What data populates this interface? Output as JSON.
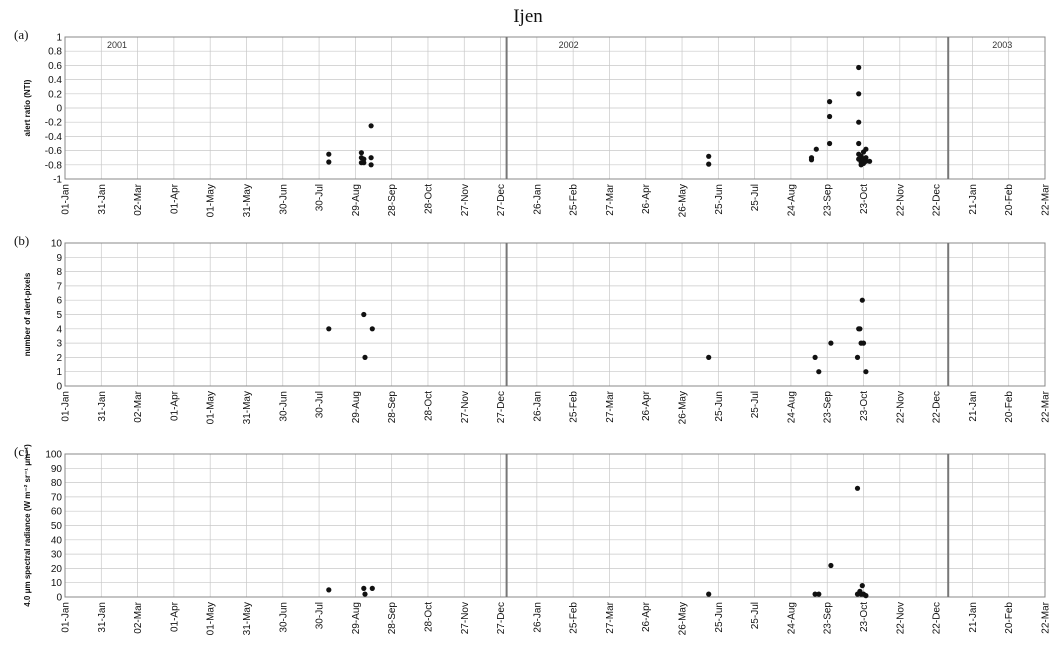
{
  "title": "Ijen",
  "chart_data": [
    {
      "panel": "(a)",
      "type": "scatter",
      "ylabel": "alert ratio (NTI)",
      "ylim": [
        -1,
        1
      ],
      "ytick_step": 0.2,
      "xlim": [
        "2001-01-01",
        "2003-03-22"
      ],
      "xticks": [
        "01-Jan",
        "31-Jan",
        "02-Mar",
        "01-Apr",
        "01-May",
        "31-May",
        "30-Jun",
        "30-Jul",
        "29-Aug",
        "28-Sep",
        "28-Oct",
        "27-Nov",
        "27-Dec",
        "26-Jan",
        "25-Feb",
        "27-Mar",
        "26-Apr",
        "26-May",
        "25-Jun",
        "25-Jul",
        "24-Aug",
        "23-Sep",
        "23-Oct",
        "22-Nov",
        "22-Dec",
        "21-Jan",
        "20-Feb",
        "22-Mar"
      ],
      "grid": true,
      "year_labels": [
        "2001",
        "2002",
        "2003"
      ],
      "year_dividers": [
        "2002-01-01",
        "2003-01-01"
      ],
      "points": [
        [
          "2001-08-07",
          -0.65
        ],
        [
          "2001-08-07",
          -0.76
        ],
        [
          "2001-09-03",
          -0.63
        ],
        [
          "2001-09-03",
          -0.7
        ],
        [
          "2001-09-03",
          -0.77
        ],
        [
          "2001-09-05",
          -0.72
        ],
        [
          "2001-09-05",
          -0.77
        ],
        [
          "2001-09-11",
          -0.25
        ],
        [
          "2001-09-11",
          -0.7
        ],
        [
          "2001-09-11",
          -0.8
        ],
        [
          "2002-06-17",
          -0.68
        ],
        [
          "2002-06-17",
          -0.79
        ],
        [
          "2002-09-10",
          -0.7
        ],
        [
          "2002-09-10",
          -0.73
        ],
        [
          "2002-09-14",
          -0.58
        ],
        [
          "2002-09-25",
          0.09
        ],
        [
          "2002-09-25",
          -0.12
        ],
        [
          "2002-09-25",
          -0.5
        ],
        [
          "2002-10-19",
          0.57
        ],
        [
          "2002-10-19",
          0.2
        ],
        [
          "2002-10-19",
          -0.2
        ],
        [
          "2002-10-19",
          -0.5
        ],
        [
          "2002-10-19",
          -0.65
        ],
        [
          "2002-10-19",
          -0.72
        ],
        [
          "2002-10-21",
          -0.68
        ],
        [
          "2002-10-21",
          -0.76
        ],
        [
          "2002-10-21",
          -0.8
        ],
        [
          "2002-10-23",
          -0.62
        ],
        [
          "2002-10-23",
          -0.72
        ],
        [
          "2002-10-23",
          -0.78
        ],
        [
          "2002-10-25",
          -0.58
        ],
        [
          "2002-10-25",
          -0.7
        ],
        [
          "2002-10-25",
          -0.75
        ],
        [
          "2002-10-28",
          -0.75
        ]
      ]
    },
    {
      "panel": "(b)",
      "type": "scatter",
      "ylabel": "number of alert-pixels",
      "ylim": [
        0,
        10
      ],
      "ytick_step": 1,
      "xlim": [
        "2001-01-01",
        "2003-03-22"
      ],
      "xticks": [
        "01-Jan",
        "31-Jan",
        "02-Mar",
        "01-Apr",
        "01-May",
        "31-May",
        "30-Jun",
        "30-Jul",
        "29-Aug",
        "28-Sep",
        "28-Oct",
        "27-Nov",
        "27-Dec",
        "26-Jan",
        "25-Feb",
        "27-Mar",
        "26-Apr",
        "26-May",
        "25-Jun",
        "25-Jul",
        "24-Aug",
        "23-Sep",
        "23-Oct",
        "22-Nov",
        "22-Dec",
        "21-Jan",
        "20-Feb",
        "22-Mar"
      ],
      "grid": true,
      "year_dividers": [
        "2002-01-01",
        "2003-01-01"
      ],
      "points": [
        [
          "2001-08-07",
          4
        ],
        [
          "2001-09-05",
          5
        ],
        [
          "2001-09-06",
          2
        ],
        [
          "2001-09-12",
          4
        ],
        [
          "2002-06-17",
          2
        ],
        [
          "2002-09-13",
          2
        ],
        [
          "2002-09-16",
          1
        ],
        [
          "2002-09-26",
          3
        ],
        [
          "2002-10-18",
          2
        ],
        [
          "2002-10-19",
          4
        ],
        [
          "2002-10-20",
          4
        ],
        [
          "2002-10-21",
          3
        ],
        [
          "2002-10-22",
          6
        ],
        [
          "2002-10-23",
          3
        ],
        [
          "2002-10-25",
          1
        ]
      ]
    },
    {
      "panel": "(c)",
      "type": "scatter",
      "ylabel": "4.0 μm spectral radiance (W m⁻² sr⁻¹ μm⁻¹)",
      "ylim": [
        0,
        100
      ],
      "ytick_step": 10,
      "xlim": [
        "2001-01-01",
        "2003-03-22"
      ],
      "xticks": [
        "01-Jan",
        "31-Jan",
        "02-Mar",
        "01-Apr",
        "01-May",
        "31-May",
        "30-Jun",
        "30-Jul",
        "29-Aug",
        "28-Sep",
        "28-Oct",
        "27-Nov",
        "27-Dec",
        "26-Jan",
        "25-Feb",
        "27-Mar",
        "26-Apr",
        "26-May",
        "25-Jun",
        "25-Jul",
        "24-Aug",
        "23-Sep",
        "23-Oct",
        "22-Nov",
        "22-Dec",
        "21-Jan",
        "20-Feb",
        "22-Mar"
      ],
      "grid": true,
      "year_dividers": [
        "2002-01-01",
        "2003-01-01"
      ],
      "points": [
        [
          "2001-08-07",
          5
        ],
        [
          "2001-09-05",
          6
        ],
        [
          "2001-09-06",
          2
        ],
        [
          "2001-09-12",
          6
        ],
        [
          "2002-06-17",
          2
        ],
        [
          "2002-09-13",
          2
        ],
        [
          "2002-09-16",
          2
        ],
        [
          "2002-09-26",
          22
        ],
        [
          "2002-10-18",
          76
        ],
        [
          "2002-10-18",
          2
        ],
        [
          "2002-10-20",
          4
        ],
        [
          "2002-10-21",
          2
        ],
        [
          "2002-10-22",
          8
        ],
        [
          "2002-10-23",
          2
        ],
        [
          "2002-10-25",
          1
        ]
      ]
    }
  ]
}
